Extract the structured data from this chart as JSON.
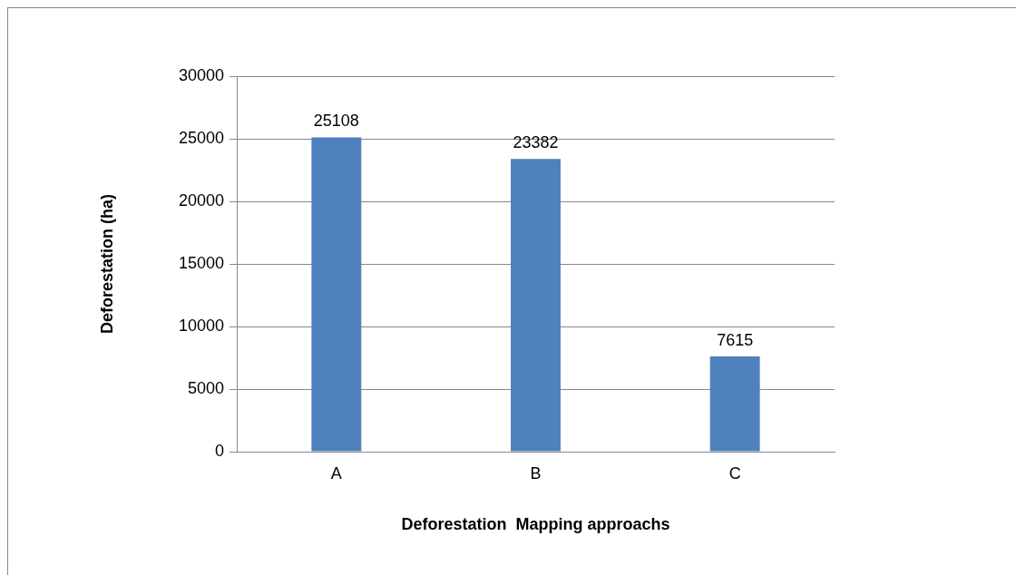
{
  "chart_data": {
    "type": "bar",
    "xlabel": "Deforestation  Mapping approachs",
    "ylabel": "Deforestation (ha)",
    "categories": [
      "A",
      "B",
      "C"
    ],
    "values": [
      25108,
      23382,
      7615
    ],
    "color": "#4f81bd",
    "ylim": [
      0,
      30000
    ],
    "yticks": [
      0,
      5000,
      10000,
      15000,
      20000,
      25000,
      30000
    ],
    "grid": "y",
    "data_labels": true,
    "legend": false
  }
}
